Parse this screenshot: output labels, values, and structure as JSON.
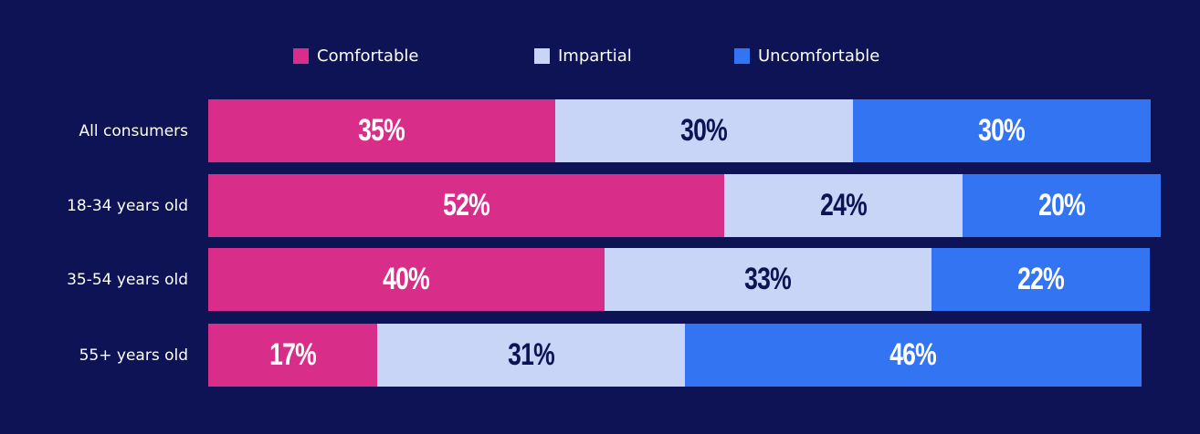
{
  "colors": {
    "background": "#0d1354",
    "comfortable": "#d82e8a",
    "impartial": "#c8d5f6",
    "uncomfortable": "#3374f3",
    "label_light": "#ffffff",
    "label_dark": "#0d1354"
  },
  "legend": [
    {
      "label": "Comfortable",
      "color": "#d82e8a"
    },
    {
      "label": "Impartial",
      "color": "#c8d5f6"
    },
    {
      "label": "Uncomfortable",
      "color": "#3374f3"
    }
  ],
  "chart_data": {
    "type": "bar",
    "orientation": "horizontal",
    "stacked": true,
    "categories": [
      "All consumers",
      "18-34 years old",
      "35-54 years old",
      "55+ years old"
    ],
    "series": [
      {
        "name": "Comfortable",
        "values": [
          35,
          52,
          40,
          17
        ],
        "labels": [
          "35%",
          "52%",
          "40%",
          "17%"
        ]
      },
      {
        "name": "Impartial",
        "values": [
          30,
          24,
          33,
          31
        ],
        "labels": [
          "30%",
          "24%",
          "33%",
          "31%"
        ]
      },
      {
        "name": "Uncomfortable",
        "values": [
          30,
          20,
          22,
          46
        ],
        "labels": [
          "30%",
          "20%",
          "22%",
          "46%"
        ]
      }
    ],
    "legend_position": "top",
    "grid": false
  }
}
